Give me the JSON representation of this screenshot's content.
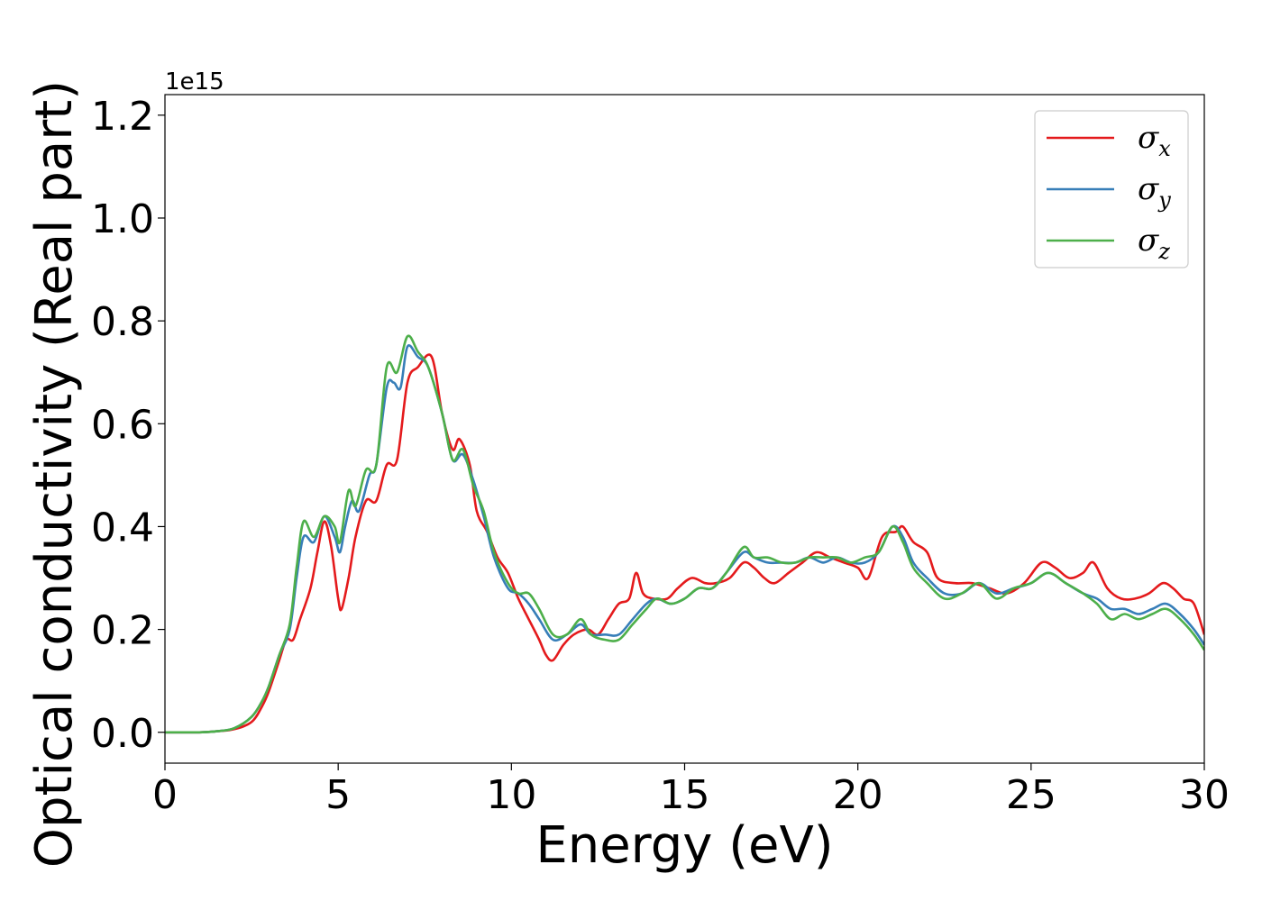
{
  "chart_data": {
    "type": "line",
    "xlabel": "Energy (eV)",
    "ylabel": "Optical conductivity (Real part)",
    "y_offset_label": "1e15",
    "xlim": [
      0,
      30
    ],
    "ylim": [
      -0.06,
      1.24
    ],
    "xticks": [
      0,
      5,
      10,
      15,
      20,
      25,
      30
    ],
    "xtick_labels": [
      "0",
      "5",
      "10",
      "15",
      "20",
      "25",
      "30"
    ],
    "yticks": [
      0.0,
      0.2,
      0.4,
      0.6,
      0.8,
      1.0,
      1.2
    ],
    "ytick_labels": [
      "0.0",
      "0.2",
      "0.4",
      "0.6",
      "0.8",
      "1.0",
      "1.2"
    ],
    "grid": false,
    "legend_position": "top-right",
    "series": [
      {
        "name": "σ",
        "subscript": "x",
        "color": "#e41a1c",
        "points": [
          [
            0,
            0
          ],
          [
            1,
            0
          ],
          [
            1.5,
            0.002
          ],
          [
            2,
            0.006
          ],
          [
            2.5,
            0.02
          ],
          [
            2.8,
            0.05
          ],
          [
            3,
            0.08
          ],
          [
            3.3,
            0.14
          ],
          [
            3.5,
            0.18
          ],
          [
            3.7,
            0.18
          ],
          [
            3.9,
            0.22
          ],
          [
            4.2,
            0.28
          ],
          [
            4.4,
            0.35
          ],
          [
            4.6,
            0.41
          ],
          [
            4.8,
            0.36
          ],
          [
            5,
            0.26
          ],
          [
            5.1,
            0.24
          ],
          [
            5.3,
            0.3
          ],
          [
            5.5,
            0.38
          ],
          [
            5.8,
            0.45
          ],
          [
            6.1,
            0.45
          ],
          [
            6.4,
            0.52
          ],
          [
            6.7,
            0.53
          ],
          [
            7,
            0.68
          ],
          [
            7.3,
            0.71
          ],
          [
            7.7,
            0.73
          ],
          [
            8,
            0.62
          ],
          [
            8.3,
            0.55
          ],
          [
            8.5,
            0.57
          ],
          [
            8.8,
            0.52
          ],
          [
            9,
            0.43
          ],
          [
            9.3,
            0.39
          ],
          [
            9.6,
            0.34
          ],
          [
            9.9,
            0.31
          ],
          [
            10.2,
            0.26
          ],
          [
            10.5,
            0.22
          ],
          [
            10.8,
            0.18
          ],
          [
            11,
            0.15
          ],
          [
            11.2,
            0.14
          ],
          [
            11.5,
            0.17
          ],
          [
            11.8,
            0.19
          ],
          [
            12.2,
            0.2
          ],
          [
            12.5,
            0.19
          ],
          [
            12.8,
            0.22
          ],
          [
            13.1,
            0.25
          ],
          [
            13.4,
            0.26
          ],
          [
            13.6,
            0.31
          ],
          [
            13.8,
            0.27
          ],
          [
            14.1,
            0.26
          ],
          [
            14.5,
            0.26
          ],
          [
            14.8,
            0.28
          ],
          [
            15.2,
            0.3
          ],
          [
            15.6,
            0.29
          ],
          [
            15.9,
            0.29
          ],
          [
            16.3,
            0.3
          ],
          [
            16.7,
            0.33
          ],
          [
            17,
            0.32
          ],
          [
            17.3,
            0.3
          ],
          [
            17.6,
            0.29
          ],
          [
            18,
            0.31
          ],
          [
            18.4,
            0.33
          ],
          [
            18.8,
            0.35
          ],
          [
            19.2,
            0.34
          ],
          [
            19.6,
            0.33
          ],
          [
            20,
            0.32
          ],
          [
            20.3,
            0.3
          ],
          [
            20.7,
            0.38
          ],
          [
            21.1,
            0.39
          ],
          [
            21.3,
            0.4
          ],
          [
            21.6,
            0.37
          ],
          [
            22,
            0.35
          ],
          [
            22.3,
            0.3
          ],
          [
            22.8,
            0.29
          ],
          [
            23.3,
            0.29
          ],
          [
            23.8,
            0.28
          ],
          [
            24.3,
            0.27
          ],
          [
            24.8,
            0.29
          ],
          [
            25.3,
            0.33
          ],
          [
            25.7,
            0.32
          ],
          [
            26.1,
            0.3
          ],
          [
            26.5,
            0.31
          ],
          [
            26.8,
            0.33
          ],
          [
            27.2,
            0.28
          ],
          [
            27.6,
            0.26
          ],
          [
            28,
            0.26
          ],
          [
            28.4,
            0.27
          ],
          [
            28.8,
            0.29
          ],
          [
            29.1,
            0.28
          ],
          [
            29.4,
            0.26
          ],
          [
            29.7,
            0.25
          ],
          [
            30,
            0.19
          ]
        ]
      },
      {
        "name": "σ",
        "subscript": "y",
        "color": "#377eb8",
        "points": [
          [
            0,
            0
          ],
          [
            1,
            0
          ],
          [
            1.5,
            0.002
          ],
          [
            2,
            0.008
          ],
          [
            2.5,
            0.03
          ],
          [
            2.8,
            0.06
          ],
          [
            3,
            0.09
          ],
          [
            3.3,
            0.15
          ],
          [
            3.6,
            0.2
          ],
          [
            3.8,
            0.3
          ],
          [
            4,
            0.38
          ],
          [
            4.3,
            0.37
          ],
          [
            4.6,
            0.42
          ],
          [
            4.9,
            0.38
          ],
          [
            5.05,
            0.35
          ],
          [
            5.2,
            0.4
          ],
          [
            5.4,
            0.45
          ],
          [
            5.6,
            0.43
          ],
          [
            5.9,
            0.5
          ],
          [
            6.1,
            0.52
          ],
          [
            6.4,
            0.67
          ],
          [
            6.6,
            0.68
          ],
          [
            6.8,
            0.67
          ],
          [
            7,
            0.75
          ],
          [
            7.3,
            0.73
          ],
          [
            7.6,
            0.71
          ],
          [
            8,
            0.62
          ],
          [
            8.3,
            0.53
          ],
          [
            8.6,
            0.54
          ],
          [
            8.9,
            0.49
          ],
          [
            9.2,
            0.42
          ],
          [
            9.5,
            0.34
          ],
          [
            9.9,
            0.28
          ],
          [
            10.2,
            0.27
          ],
          [
            10.5,
            0.25
          ],
          [
            10.8,
            0.22
          ],
          [
            11.2,
            0.18
          ],
          [
            11.6,
            0.19
          ],
          [
            12,
            0.21
          ],
          [
            12.3,
            0.19
          ],
          [
            12.7,
            0.19
          ],
          [
            13.1,
            0.19
          ],
          [
            13.5,
            0.22
          ],
          [
            13.9,
            0.25
          ],
          [
            14.2,
            0.26
          ],
          [
            14.6,
            0.25
          ],
          [
            15,
            0.26
          ],
          [
            15.4,
            0.28
          ],
          [
            15.8,
            0.28
          ],
          [
            16.2,
            0.31
          ],
          [
            16.7,
            0.35
          ],
          [
            17,
            0.34
          ],
          [
            17.4,
            0.33
          ],
          [
            17.8,
            0.33
          ],
          [
            18.2,
            0.33
          ],
          [
            18.6,
            0.34
          ],
          [
            19,
            0.33
          ],
          [
            19.4,
            0.34
          ],
          [
            19.8,
            0.33
          ],
          [
            20.2,
            0.33
          ],
          [
            20.6,
            0.35
          ],
          [
            21,
            0.4
          ],
          [
            21.3,
            0.38
          ],
          [
            21.6,
            0.33
          ],
          [
            22,
            0.3
          ],
          [
            22.5,
            0.27
          ],
          [
            23,
            0.27
          ],
          [
            23.5,
            0.29
          ],
          [
            24,
            0.27
          ],
          [
            24.5,
            0.28
          ],
          [
            25,
            0.29
          ],
          [
            25.5,
            0.31
          ],
          [
            26,
            0.29
          ],
          [
            26.5,
            0.27
          ],
          [
            26.9,
            0.26
          ],
          [
            27.3,
            0.24
          ],
          [
            27.7,
            0.24
          ],
          [
            28.1,
            0.23
          ],
          [
            28.5,
            0.24
          ],
          [
            28.9,
            0.25
          ],
          [
            29.3,
            0.23
          ],
          [
            29.7,
            0.2
          ],
          [
            30,
            0.17
          ]
        ]
      },
      {
        "name": "σ",
        "subscript": "z",
        "color": "#4daf4a",
        "points": [
          [
            0,
            0
          ],
          [
            1,
            0
          ],
          [
            1.5,
            0.002
          ],
          [
            2,
            0.008
          ],
          [
            2.5,
            0.03
          ],
          [
            2.8,
            0.06
          ],
          [
            3,
            0.09
          ],
          [
            3.3,
            0.15
          ],
          [
            3.6,
            0.21
          ],
          [
            3.8,
            0.32
          ],
          [
            4,
            0.41
          ],
          [
            4.3,
            0.38
          ],
          [
            4.6,
            0.42
          ],
          [
            4.9,
            0.4
          ],
          [
            5.05,
            0.37
          ],
          [
            5.3,
            0.47
          ],
          [
            5.5,
            0.44
          ],
          [
            5.8,
            0.51
          ],
          [
            6.1,
            0.52
          ],
          [
            6.4,
            0.71
          ],
          [
            6.7,
            0.7
          ],
          [
            7,
            0.77
          ],
          [
            7.3,
            0.74
          ],
          [
            7.6,
            0.71
          ],
          [
            8,
            0.62
          ],
          [
            8.3,
            0.53
          ],
          [
            8.6,
            0.55
          ],
          [
            8.9,
            0.48
          ],
          [
            9.2,
            0.43
          ],
          [
            9.5,
            0.35
          ],
          [
            9.9,
            0.29
          ],
          [
            10.2,
            0.27
          ],
          [
            10.5,
            0.27
          ],
          [
            10.8,
            0.24
          ],
          [
            11.2,
            0.19
          ],
          [
            11.6,
            0.19
          ],
          [
            12,
            0.22
          ],
          [
            12.3,
            0.19
          ],
          [
            12.7,
            0.18
          ],
          [
            13.1,
            0.18
          ],
          [
            13.5,
            0.21
          ],
          [
            13.9,
            0.24
          ],
          [
            14.2,
            0.26
          ],
          [
            14.6,
            0.25
          ],
          [
            15,
            0.26
          ],
          [
            15.4,
            0.28
          ],
          [
            15.8,
            0.28
          ],
          [
            16.2,
            0.31
          ],
          [
            16.7,
            0.36
          ],
          [
            17,
            0.34
          ],
          [
            17.4,
            0.34
          ],
          [
            17.8,
            0.33
          ],
          [
            18.2,
            0.33
          ],
          [
            18.6,
            0.34
          ],
          [
            19,
            0.34
          ],
          [
            19.4,
            0.34
          ],
          [
            19.8,
            0.33
          ],
          [
            20.2,
            0.34
          ],
          [
            20.6,
            0.35
          ],
          [
            21,
            0.4
          ],
          [
            21.3,
            0.37
          ],
          [
            21.6,
            0.32
          ],
          [
            22,
            0.29
          ],
          [
            22.5,
            0.26
          ],
          [
            23,
            0.27
          ],
          [
            23.5,
            0.29
          ],
          [
            24,
            0.26
          ],
          [
            24.5,
            0.28
          ],
          [
            25,
            0.29
          ],
          [
            25.5,
            0.31
          ],
          [
            26,
            0.29
          ],
          [
            26.5,
            0.27
          ],
          [
            26.9,
            0.25
          ],
          [
            27.3,
            0.22
          ],
          [
            27.7,
            0.23
          ],
          [
            28.1,
            0.22
          ],
          [
            28.5,
            0.23
          ],
          [
            28.9,
            0.24
          ],
          [
            29.3,
            0.22
          ],
          [
            29.7,
            0.19
          ],
          [
            30,
            0.16
          ]
        ]
      }
    ]
  }
}
